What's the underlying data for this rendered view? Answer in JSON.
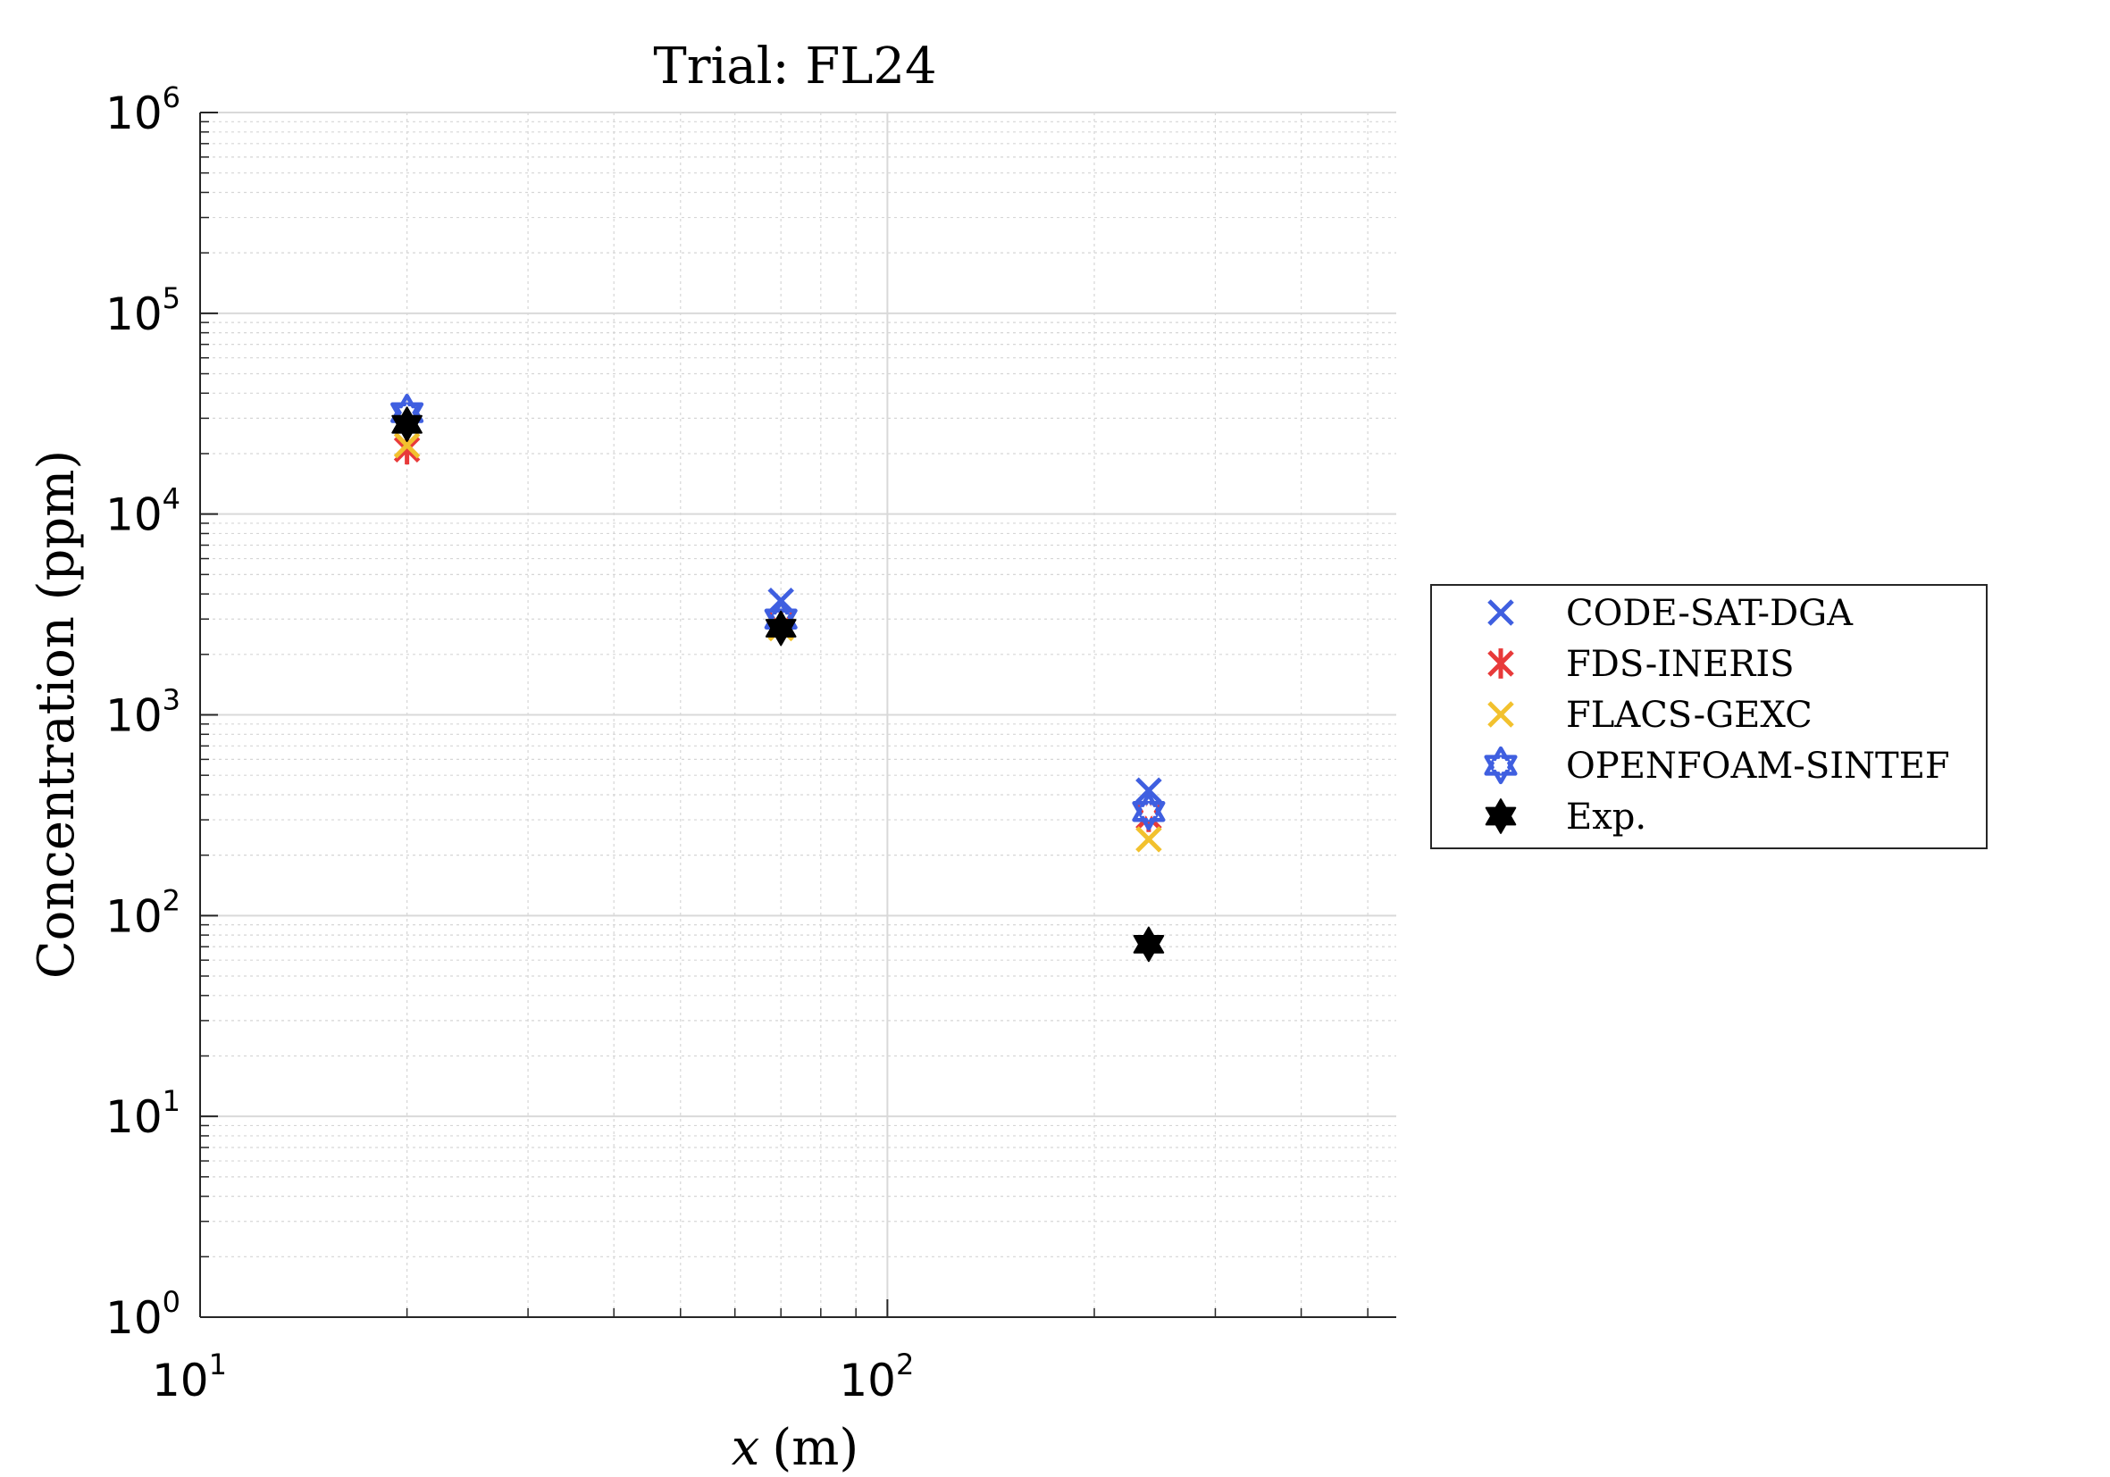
{
  "chart_data": {
    "type": "scatter",
    "title": "Trial:  FL24",
    "xlabel_var": "x",
    "xlabel_unit": "(m)",
    "ylabel": "Concentration (ppm)",
    "x_scale": "log",
    "y_scale": "log",
    "xlim": [
      10,
      550
    ],
    "ylim": [
      1,
      1000000
    ],
    "x_ticks": [
      {
        "base": "10",
        "exp": "1",
        "value": 10
      },
      {
        "base": "10",
        "exp": "2",
        "value": 100
      }
    ],
    "y_ticks": [
      {
        "base": "10",
        "exp": "0",
        "value": 1
      },
      {
        "base": "10",
        "exp": "1",
        "value": 10
      },
      {
        "base": "10",
        "exp": "2",
        "value": 100
      },
      {
        "base": "10",
        "exp": "3",
        "value": 1000
      },
      {
        "base": "10",
        "exp": "4",
        "value": 10000
      },
      {
        "base": "10",
        "exp": "5",
        "value": 100000
      },
      {
        "base": "10",
        "exp": "6",
        "value": 1000000
      }
    ],
    "grid": true,
    "legend_position": "right, outside plot",
    "series": [
      {
        "name": "CODE-SAT-DGA",
        "marker": "x",
        "color": "#3f5fe0",
        "x": [
          20,
          70,
          240
        ],
        "y": [
          30000,
          3700,
          420
        ]
      },
      {
        "name": "FDS-INERIS",
        "marker": "asterisk",
        "color": "#e83a3a",
        "x": [
          20,
          70,
          240
        ],
        "y": [
          21000,
          2800,
          310
        ]
      },
      {
        "name": "FLACS-GEXC",
        "marker": "x",
        "color": "#f2c12e",
        "x": [
          20,
          70,
          240
        ],
        "y": [
          22000,
          2700,
          240
        ]
      },
      {
        "name": "OPENFOAM-SINTEF",
        "marker": "hexagram-open",
        "color": "#3f5fe0",
        "x": [
          20,
          70,
          240
        ],
        "y": [
          32000,
          3000,
          330
        ]
      },
      {
        "name": "Exp.",
        "marker": "hexagram-filled",
        "color": "#000000",
        "x": [
          20,
          70,
          240
        ],
        "y": [
          28000,
          2700,
          72
        ]
      }
    ]
  }
}
